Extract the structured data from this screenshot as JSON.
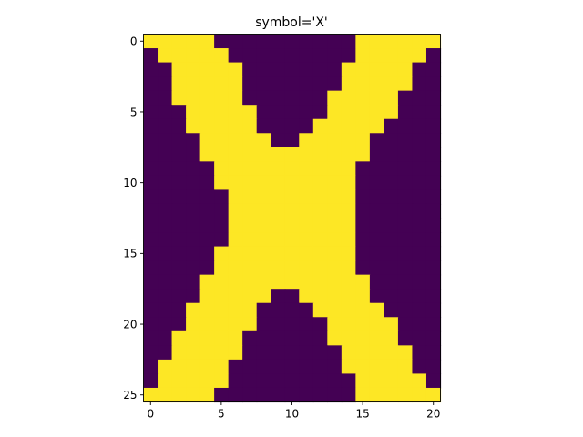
{
  "chart_data": {
    "type": "heatmap",
    "title": "symbol='X'",
    "xlabel": "",
    "ylabel": "",
    "rows": 26,
    "cols": 21,
    "xlim": [
      -0.5,
      20.5
    ],
    "ylim": [
      25.5,
      -0.5
    ],
    "y_inverted": true,
    "x_ticks": [
      0,
      5,
      10,
      15,
      20
    ],
    "y_ticks": [
      0,
      5,
      10,
      15,
      20,
      25
    ],
    "grid": false,
    "colormap": "viridis",
    "value_colors": {
      "0": "#440154",
      "1": "#fde725"
    },
    "matrix": [
      "111110000000000111111",
      "011111000000000111110",
      "001111100000001111100",
      "001111100000001111100",
      "001111100000011111000",
      "000111110000011111000",
      "000111110000111110000",
      "000011111001111100000",
      "000011111111111100000",
      "000001111111111000000",
      "000001111111111000000",
      "000000111111111000000",
      "000000111111111000000",
      "000000111111111000000",
      "000000111111111000000",
      "000001111111111000000",
      "000001111111111000000",
      "000011111111111100000",
      "000011111001111100000",
      "000111110000111110000",
      "000111110000011111000",
      "001111100000011111000",
      "001111100000001111100",
      "011111000000001111100",
      "011111000000000111110",
      "111110000000000111111"
    ]
  }
}
